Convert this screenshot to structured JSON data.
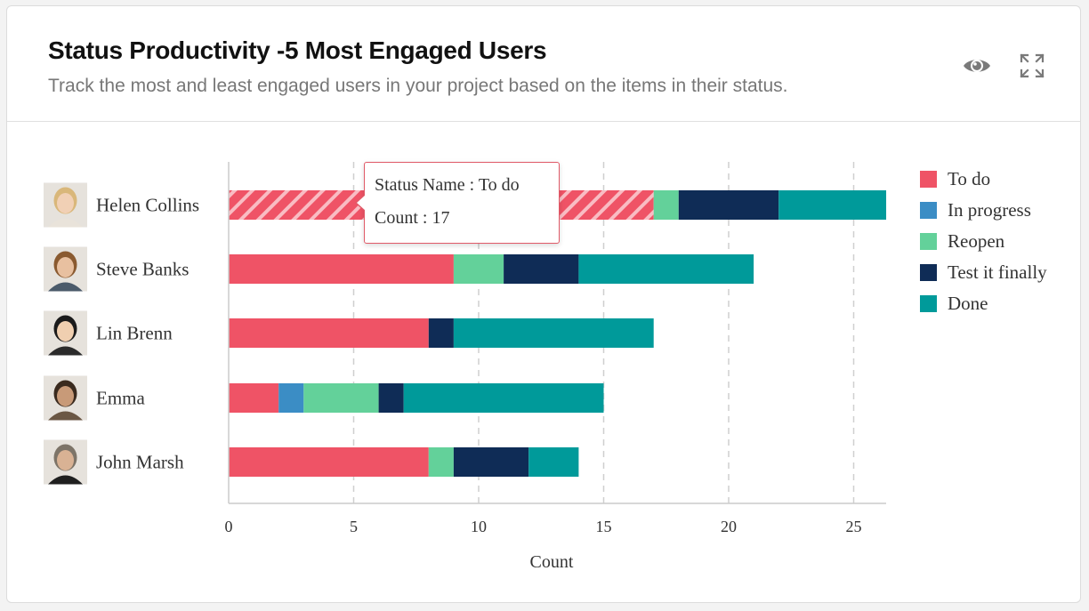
{
  "widget": {
    "title": "Status Productivity -5 Most Engaged Users",
    "subtitle": "Track the most and least engaged users in your project based on the items in their status.",
    "view_icon": "eye-icon",
    "expand_icon": "expand-icon"
  },
  "tooltip": {
    "line1": "Status Name : To do",
    "line2": "Count : 17"
  },
  "chart_data": {
    "type": "bar",
    "orientation": "horizontal",
    "stacked": true,
    "title": "Status Productivity -5 Most Engaged Users",
    "xlabel": "Count",
    "ylabel": "",
    "xlim": [
      0,
      26.3
    ],
    "xticks": [
      0,
      5,
      10,
      15,
      20,
      25
    ],
    "grid": "vertical dashed",
    "legend_position": "right",
    "categories": [
      "Helen Collins",
      "Steve Banks",
      "Lin Brenn",
      "Emma",
      "John Marsh"
    ],
    "series": [
      {
        "name": "To do",
        "color": "#ef5366",
        "values": [
          17,
          9,
          8,
          2,
          8
        ]
      },
      {
        "name": "In progress",
        "color": "#3b8dc5",
        "values": [
          0,
          0,
          0,
          1,
          0
        ]
      },
      {
        "name": "Reopen",
        "color": "#63d19a",
        "values": [
          1,
          2,
          0,
          3,
          1
        ]
      },
      {
        "name": "Test it finally",
        "color": "#0f2c56",
        "values": [
          4,
          3,
          1,
          1,
          3
        ]
      },
      {
        "name": "Done",
        "color": "#009a9a",
        "values": [
          4.3,
          7,
          8,
          8,
          2
        ]
      }
    ],
    "highlighted": {
      "category": "Helen Collins",
      "series": "To do"
    }
  }
}
